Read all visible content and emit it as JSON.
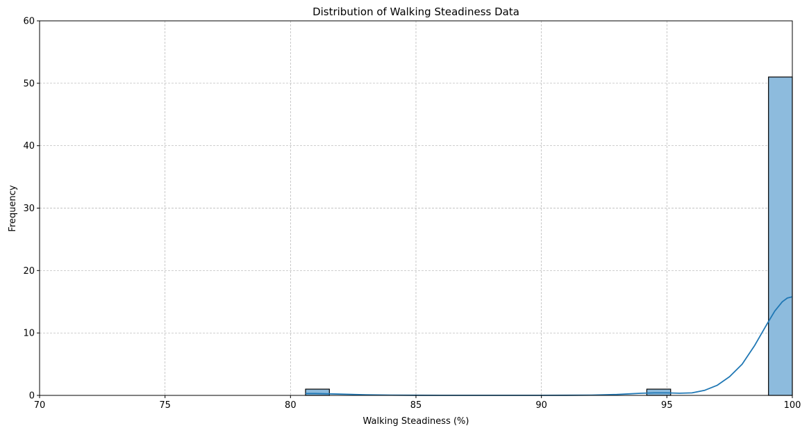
{
  "chart_data": {
    "type": "bar",
    "title": "Distribution of Walking Steadiness Data",
    "xlabel": "Walking Steadiness (%)",
    "ylabel": "Frequency",
    "xlim": [
      70,
      100
    ],
    "ylim": [
      0,
      60
    ],
    "xticks": [
      70,
      75,
      80,
      85,
      90,
      95,
      100
    ],
    "yticks": [
      0,
      10,
      20,
      30,
      40,
      50,
      60
    ],
    "grid": true,
    "bins": [
      {
        "x0": 80.6,
        "x1": 81.55,
        "count": 1
      },
      {
        "x0": 94.2,
        "x1": 95.15,
        "count": 1
      },
      {
        "x0": 99.05,
        "x1": 100.0,
        "count": 51
      }
    ],
    "kde": {
      "x": [
        80.6,
        81,
        82,
        83,
        84,
        85,
        86,
        87,
        88,
        89,
        90,
        91,
        92,
        93,
        93.5,
        94,
        94.5,
        95,
        95.5,
        96,
        96.5,
        97,
        97.5,
        98,
        98.5,
        99,
        99.3,
        99.6,
        99.8,
        100
      ],
      "y": [
        0.3,
        0.3,
        0.2,
        0.1,
        0.05,
        0.02,
        0.01,
        0.01,
        0.01,
        0.01,
        0.01,
        0.02,
        0.05,
        0.15,
        0.25,
        0.35,
        0.4,
        0.4,
        0.35,
        0.4,
        0.8,
        1.6,
        3.0,
        5.0,
        8.0,
        11.5,
        13.5,
        15.0,
        15.6,
        15.8
      ]
    },
    "colors": {
      "bar_fill": "#8dbbdd",
      "bar_edge": "#000000",
      "kde_line": "#1f77b4",
      "grid": "#b0b0b0"
    }
  }
}
